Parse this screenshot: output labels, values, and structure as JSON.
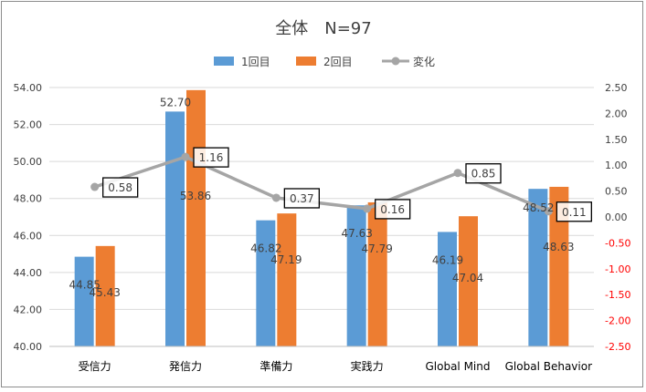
{
  "chart_data": {
    "type": "bar",
    "title": "全体　N=97",
    "categories": [
      "受信力",
      "発信力",
      "準備力",
      "実践力",
      "Global Mind",
      "Global Behavior"
    ],
    "series": [
      {
        "name": "1回目",
        "type": "bar",
        "axis": "left",
        "color": "#5b9bd5",
        "values": [
          44.85,
          52.7,
          46.82,
          47.63,
          46.19,
          48.52
        ]
      },
      {
        "name": "2回目",
        "type": "bar",
        "axis": "left",
        "color": "#ed7d31",
        "values": [
          45.43,
          53.86,
          47.19,
          47.79,
          47.04,
          48.63
        ]
      },
      {
        "name": "変化",
        "type": "line",
        "axis": "right",
        "color": "#a5a5a5",
        "values": [
          0.58,
          1.16,
          0.37,
          0.16,
          0.85,
          0.11
        ]
      }
    ],
    "ylim": [
      40,
      54
    ],
    "y_ticks": [
      "40.00",
      "42.00",
      "44.00",
      "46.00",
      "48.00",
      "50.00",
      "52.00",
      "54.00"
    ],
    "y2lim": [
      -2.5,
      2.5
    ],
    "y2_ticks": [
      "-2.50",
      "-2.00",
      "-1.50",
      "-1.00",
      "-0.50",
      "0.00",
      "0.50",
      "1.00",
      "1.50",
      "2.00",
      "2.50"
    ],
    "y2_negative_color": "#ff0000",
    "grid": true,
    "legend_position": "top",
    "bar_label_1": [
      "44.85",
      "52.70",
      "46.82",
      "47.63",
      "46.19",
      "48.52"
    ],
    "bar_label_2": [
      "45.43",
      "53.86",
      "47.19",
      "47.79",
      "47.04",
      "48.63"
    ],
    "line_label": [
      "0.58",
      "1.16",
      "0.37",
      "0.16",
      "0.85",
      "0.11"
    ]
  }
}
